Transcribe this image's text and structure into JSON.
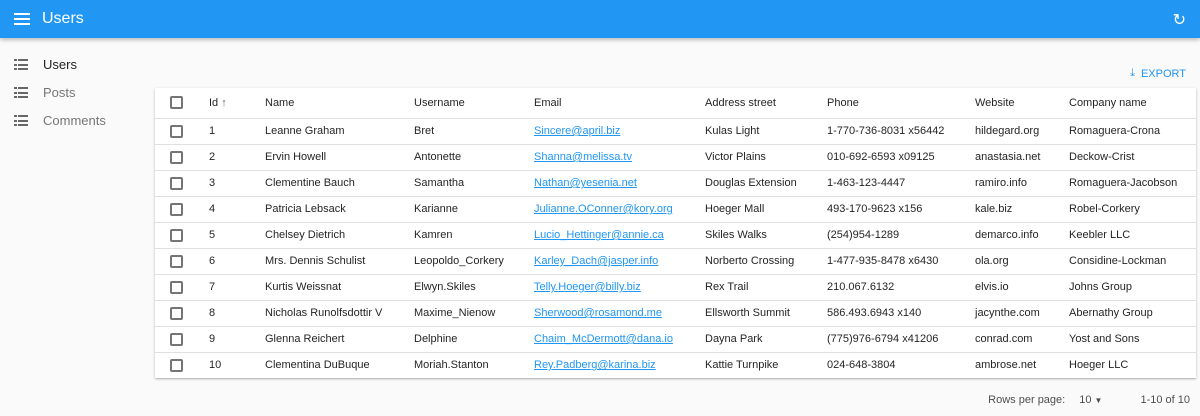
{
  "appbar": {
    "title": "Users",
    "menu_icon": "menu-icon",
    "refresh_icon": "refresh-icon"
  },
  "sidebar": {
    "items": [
      {
        "label": "Users",
        "active": true
      },
      {
        "label": "Posts"
      },
      {
        "label": "Comments"
      }
    ]
  },
  "toolbar": {
    "export_label": "EXPORT"
  },
  "table": {
    "columns": [
      "Id",
      "Name",
      "Username",
      "Email",
      "Address street",
      "Phone",
      "Website",
      "Company name"
    ],
    "sort": {
      "column": "Id",
      "direction": "asc"
    },
    "rows": [
      [
        "1",
        "Leanne Graham",
        "Bret",
        "Sincere@april.biz",
        "Kulas Light",
        "1-770-736-8031 x56442",
        "hildegard.org",
        "Romaguera-Crona"
      ],
      [
        "2",
        "Ervin Howell",
        "Antonette",
        "Shanna@melissa.tv",
        "Victor Plains",
        "010-692-6593 x09125",
        "anastasia.net",
        "Deckow-Crist"
      ],
      [
        "3",
        "Clementine Bauch",
        "Samantha",
        "Nathan@yesenia.net",
        "Douglas Extension",
        "1-463-123-4447",
        "ramiro.info",
        "Romaguera-Jacobson"
      ],
      [
        "4",
        "Patricia Lebsack",
        "Karianne",
        "Julianne.OConner@kory.org",
        "Hoeger Mall",
        "493-170-9623 x156",
        "kale.biz",
        "Robel-Corkery"
      ],
      [
        "5",
        "Chelsey Dietrich",
        "Kamren",
        "Lucio_Hettinger@annie.ca",
        "Skiles Walks",
        "(254)954-1289",
        "demarco.info",
        "Keebler LLC"
      ],
      [
        "6",
        "Mrs. Dennis Schulist",
        "Leopoldo_Corkery",
        "Karley_Dach@jasper.info",
        "Norberto Crossing",
        "1-477-935-8478 x6430",
        "ola.org",
        "Considine-Lockman"
      ],
      [
        "7",
        "Kurtis Weissnat",
        "Elwyn.Skiles",
        "Telly.Hoeger@billy.biz",
        "Rex Trail",
        "210.067.6132",
        "elvis.io",
        "Johns Group"
      ],
      [
        "8",
        "Nicholas Runolfsdottir V",
        "Maxime_Nienow",
        "Sherwood@rosamond.me",
        "Ellsworth Summit",
        "586.493.6943 x140",
        "jacynthe.com",
        "Abernathy Group"
      ],
      [
        "9",
        "Glenna Reichert",
        "Delphine",
        "Chaim_McDermott@dana.io",
        "Dayna Park",
        "(775)976-6794 x41206",
        "conrad.com",
        "Yost and Sons"
      ],
      [
        "10",
        "Clementina DuBuque",
        "Moriah.Stanton",
        "Rey.Padberg@karina.biz",
        "Kattie Turnpike",
        "024-648-3804",
        "ambrose.net",
        "Hoeger LLC"
      ]
    ]
  },
  "pagination": {
    "rows_per_page_label": "Rows per page:",
    "rows_per_page": "10",
    "range": "1-10 of 10"
  },
  "colors": {
    "primary": "#2196f3"
  }
}
